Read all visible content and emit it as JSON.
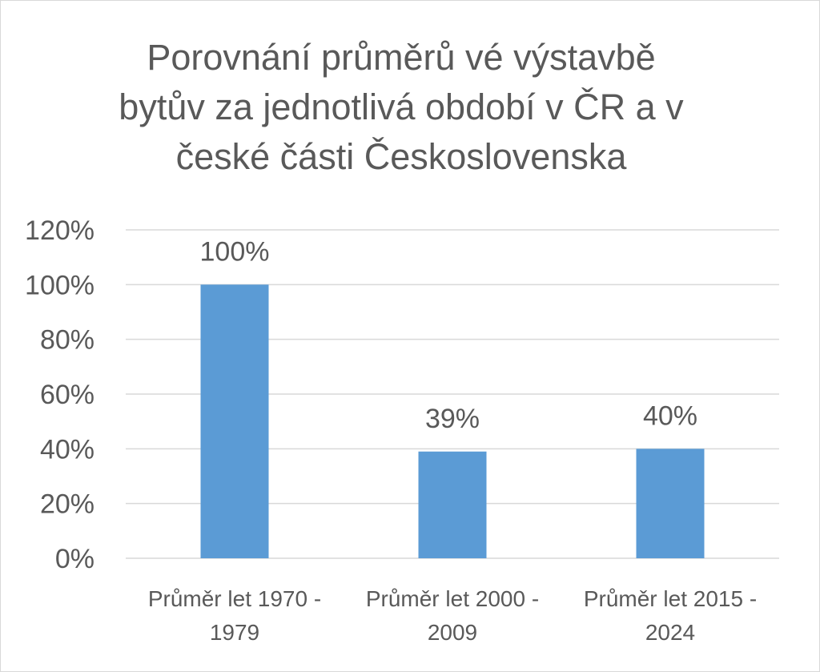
{
  "chart_data": {
    "type": "bar",
    "title_lines": [
      "Porovnání průměrů vé výstavbě",
      "bytův za  jednotlivá období v ČR a v",
      "české části Československa"
    ],
    "categories": [
      [
        "Průměr let 1970 -",
        "1979"
      ],
      [
        "Průměr let 2000 -",
        "2009"
      ],
      [
        "Průměr let 2015 -",
        "2024"
      ]
    ],
    "values": [
      100,
      39,
      40
    ],
    "data_labels": [
      "100%",
      "39%",
      "40%"
    ],
    "y_ticks": [
      "0%",
      "20%",
      "40%",
      "60%",
      "80%",
      "100%",
      "120%"
    ],
    "ylim": [
      0,
      120
    ],
    "y_unit": "%",
    "grid": true,
    "legend": "none",
    "bar_color": "#5b9bd5",
    "grid_color": "#d9d9d9",
    "text_color": "#595959"
  }
}
